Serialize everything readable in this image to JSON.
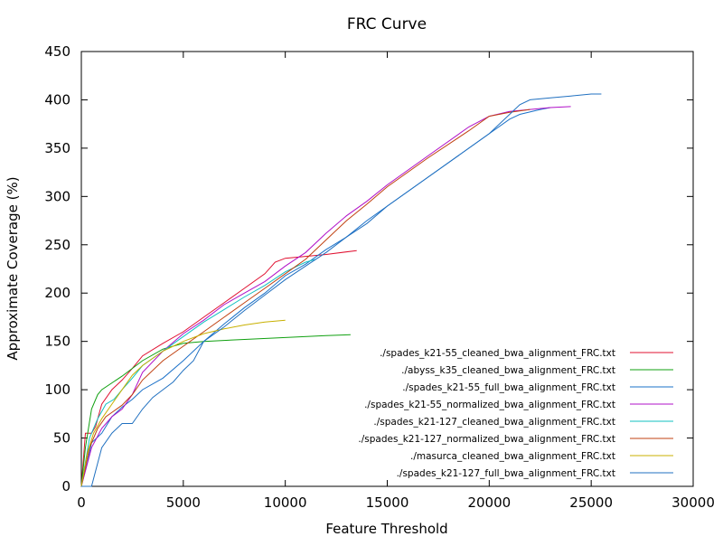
{
  "chart_data": {
    "type": "line",
    "title": "FRC Curve",
    "xlabel": "Feature Threshold",
    "ylabel": "Approximate Coverage (%)",
    "xlim": [
      0,
      30000
    ],
    "ylim": [
      0,
      450
    ],
    "xticks": [
      0,
      5000,
      10000,
      15000,
      20000,
      25000,
      30000
    ],
    "yticks": [
      0,
      50,
      100,
      150,
      200,
      250,
      300,
      350,
      400,
      450
    ],
    "grid": false,
    "legend_position": "bottom-right",
    "series": [
      {
        "name": "./spades_k21-55_cleaned_bwa_alignment_FRC.txt",
        "color": "#e01030",
        "points": [
          [
            0,
            0
          ],
          [
            200,
            55
          ],
          [
            500,
            55
          ],
          [
            700,
            62
          ],
          [
            1000,
            85
          ],
          [
            1500,
            100
          ],
          [
            2000,
            110
          ],
          [
            2500,
            122
          ],
          [
            3000,
            135
          ],
          [
            4000,
            148
          ],
          [
            5000,
            160
          ],
          [
            6000,
            175
          ],
          [
            7000,
            190
          ],
          [
            8000,
            205
          ],
          [
            9000,
            220
          ],
          [
            9500,
            232
          ],
          [
            10000,
            236
          ],
          [
            11000,
            238
          ],
          [
            12000,
            240
          ],
          [
            13500,
            244
          ]
        ]
      },
      {
        "name": "./abyss_k35_cleaned_bwa_alignment_FRC.txt",
        "color": "#10a010",
        "points": [
          [
            0,
            0
          ],
          [
            200,
            40
          ],
          [
            500,
            80
          ],
          [
            800,
            95
          ],
          [
            1000,
            100
          ],
          [
            2000,
            114
          ],
          [
            3000,
            130
          ],
          [
            4000,
            142
          ],
          [
            5000,
            148
          ],
          [
            6000,
            150
          ],
          [
            8000,
            152
          ],
          [
            10000,
            154
          ],
          [
            12000,
            156
          ],
          [
            13200,
            157
          ]
        ]
      },
      {
        "name": "./spades_k21-55_full_bwa_alignment_FRC.txt",
        "color": "#1a70c8",
        "points": [
          [
            0,
            0
          ],
          [
            300,
            25
          ],
          [
            500,
            45
          ],
          [
            1000,
            55
          ],
          [
            1500,
            72
          ],
          [
            2000,
            82
          ],
          [
            2500,
            90
          ],
          [
            3000,
            100
          ],
          [
            4000,
            112
          ],
          [
            5000,
            130
          ],
          [
            6000,
            150
          ],
          [
            7000,
            168
          ],
          [
            8000,
            185
          ],
          [
            9000,
            200
          ],
          [
            10000,
            218
          ],
          [
            11000,
            230
          ],
          [
            12000,
            245
          ],
          [
            13000,
            258
          ],
          [
            14000,
            275
          ],
          [
            15000,
            290
          ],
          [
            17000,
            320
          ],
          [
            19000,
            350
          ],
          [
            20000,
            365
          ],
          [
            21000,
            380
          ],
          [
            21500,
            385
          ],
          [
            22500,
            390
          ],
          [
            23000,
            392
          ]
        ]
      },
      {
        "name": "./spades_k21-55_normalized_bwa_alignment_FRC.txt",
        "color": "#b010c8",
        "points": [
          [
            0,
            0
          ],
          [
            500,
            40
          ],
          [
            1000,
            60
          ],
          [
            1500,
            72
          ],
          [
            2000,
            80
          ],
          [
            2500,
            95
          ],
          [
            3000,
            118
          ],
          [
            4000,
            140
          ],
          [
            5000,
            158
          ],
          [
            6000,
            172
          ],
          [
            7000,
            188
          ],
          [
            8000,
            200
          ],
          [
            9000,
            212
          ],
          [
            10000,
            228
          ],
          [
            11000,
            242
          ],
          [
            12000,
            262
          ],
          [
            13000,
            280
          ],
          [
            14000,
            295
          ],
          [
            15000,
            312
          ],
          [
            17000,
            342
          ],
          [
            19000,
            372
          ],
          [
            20000,
            383
          ],
          [
            21000,
            388
          ],
          [
            22000,
            390
          ],
          [
            23000,
            392
          ],
          [
            24000,
            393
          ]
        ]
      },
      {
        "name": "./spades_k21-127_cleaned_bwa_alignment_FRC.txt",
        "color": "#10c0c0",
        "points": [
          [
            0,
            0
          ],
          [
            400,
            50
          ],
          [
            800,
            70
          ],
          [
            1200,
            85
          ],
          [
            1600,
            90
          ],
          [
            2000,
            100
          ],
          [
            2500,
            112
          ],
          [
            3000,
            125
          ],
          [
            4000,
            140
          ],
          [
            5000,
            155
          ],
          [
            6000,
            170
          ],
          [
            7000,
            183
          ],
          [
            8000,
            196
          ],
          [
            9000,
            208
          ],
          [
            10000,
            222
          ],
          [
            11000,
            232
          ],
          [
            11500,
            235
          ]
        ]
      },
      {
        "name": "./spades_k21-127_normalized_bwa_alignment_FRC.txt",
        "color": "#c04010",
        "points": [
          [
            0,
            0
          ],
          [
            400,
            40
          ],
          [
            800,
            60
          ],
          [
            1200,
            72
          ],
          [
            1600,
            78
          ],
          [
            2000,
            84
          ],
          [
            2500,
            95
          ],
          [
            3000,
            110
          ],
          [
            4000,
            130
          ],
          [
            5000,
            145
          ],
          [
            6000,
            160
          ],
          [
            7000,
            175
          ],
          [
            8000,
            190
          ],
          [
            9000,
            205
          ],
          [
            10000,
            220
          ],
          [
            11000,
            235
          ],
          [
            12000,
            255
          ],
          [
            13000,
            275
          ],
          [
            14000,
            292
          ],
          [
            15000,
            310
          ],
          [
            17000,
            340
          ],
          [
            19000,
            368
          ],
          [
            20000,
            383
          ],
          [
            21000,
            387
          ],
          [
            22000,
            390
          ]
        ]
      },
      {
        "name": "./masurca_cleaned_bwa_alignment_FRC.txt",
        "color": "#c8b000",
        "points": [
          [
            0,
            0
          ],
          [
            300,
            35
          ],
          [
            600,
            55
          ],
          [
            1000,
            70
          ],
          [
            1500,
            85
          ],
          [
            2000,
            100
          ],
          [
            2500,
            115
          ],
          [
            3000,
            125
          ],
          [
            4000,
            140
          ],
          [
            5000,
            150
          ],
          [
            6000,
            158
          ],
          [
            7000,
            163
          ],
          [
            8000,
            167
          ],
          [
            9000,
            170
          ],
          [
            10000,
            172
          ]
        ]
      },
      {
        "name": "./spades_k21-127_full_bwa_alignment_FRC.txt",
        "color": "#2070c0",
        "points": [
          [
            0,
            0
          ],
          [
            500,
            0
          ],
          [
            1000,
            40
          ],
          [
            1500,
            55
          ],
          [
            2000,
            65
          ],
          [
            2500,
            65
          ],
          [
            3000,
            80
          ],
          [
            3500,
            92
          ],
          [
            4000,
            100
          ],
          [
            4500,
            108
          ],
          [
            5000,
            120
          ],
          [
            5500,
            130
          ],
          [
            6000,
            150
          ],
          [
            7000,
            165
          ],
          [
            8000,
            182
          ],
          [
            9000,
            198
          ],
          [
            10000,
            214
          ],
          [
            11000,
            228
          ],
          [
            12000,
            242
          ],
          [
            13000,
            258
          ],
          [
            14000,
            272
          ],
          [
            15000,
            290
          ],
          [
            17000,
            320
          ],
          [
            19000,
            350
          ],
          [
            20000,
            365
          ],
          [
            21000,
            385
          ],
          [
            21500,
            395
          ],
          [
            22000,
            400
          ],
          [
            23000,
            402
          ],
          [
            24000,
            404
          ],
          [
            25000,
            406
          ],
          [
            25500,
            406
          ]
        ]
      }
    ]
  }
}
